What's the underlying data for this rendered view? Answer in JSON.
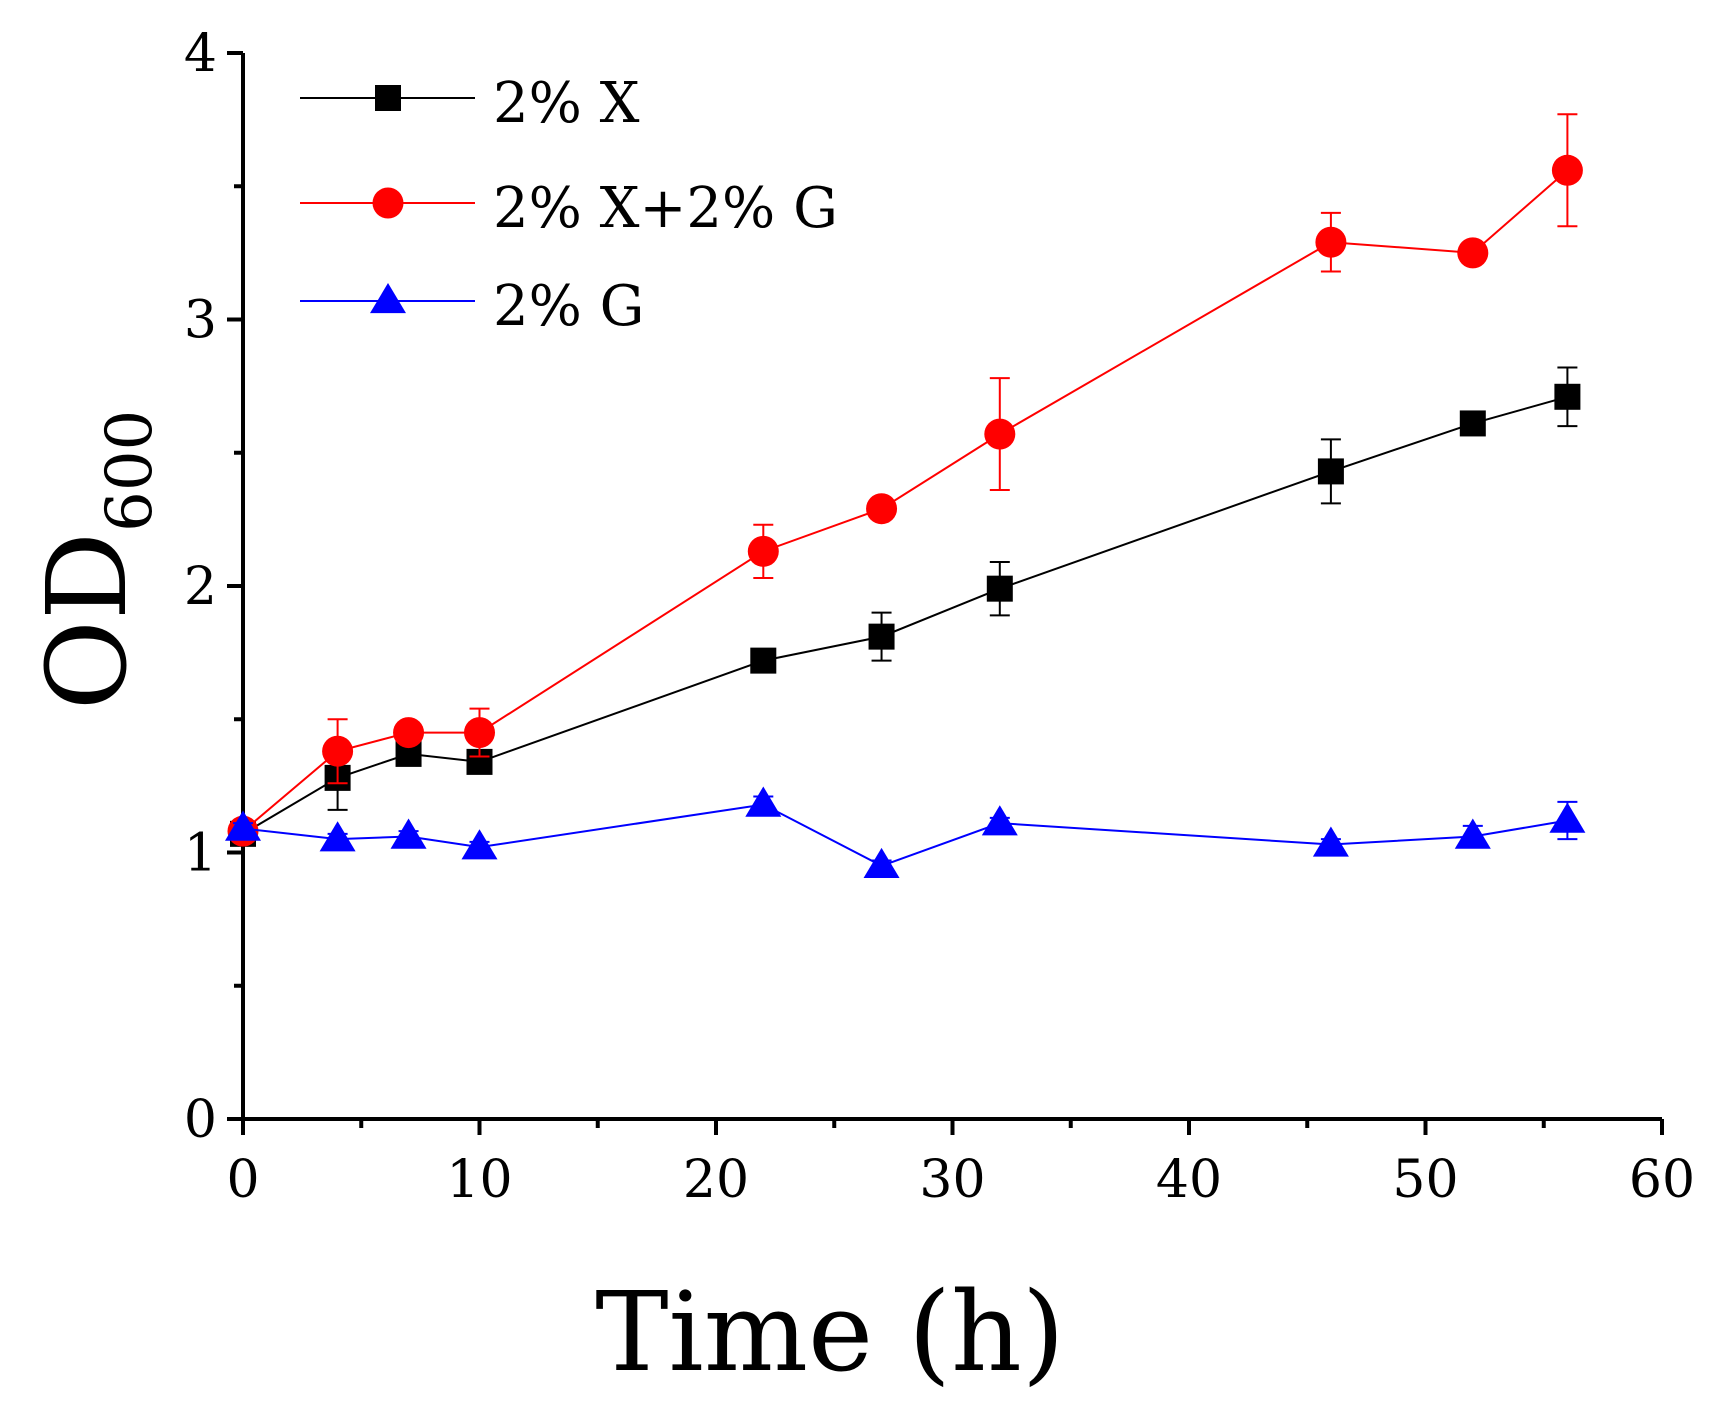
{
  "chart_data": {
    "type": "line",
    "xlabel": "Time (h)",
    "ylabel_main": "OD",
    "ylabel_sub": "600",
    "xlim": [
      0,
      60
    ],
    "ylim": [
      0,
      4
    ],
    "x_ticks": [
      0,
      10,
      20,
      30,
      40,
      50,
      60
    ],
    "x_tick_labels": [
      "0",
      "10",
      "20",
      "30",
      "40",
      "50",
      "60"
    ],
    "y_ticks": [
      0,
      1,
      2,
      3,
      4
    ],
    "y_tick_labels": [
      "0",
      "1",
      "2",
      "3",
      "4"
    ],
    "x_minor_step": 5,
    "y_minor_step": 0.5,
    "legend_position": "top-left",
    "series": [
      {
        "name": "2% X",
        "color": "#000000",
        "marker": "square",
        "x": [
          0,
          4,
          7,
          10,
          22,
          27,
          32,
          46,
          52,
          56
        ],
        "y": [
          1.07,
          1.28,
          1.37,
          1.34,
          1.72,
          1.81,
          1.99,
          2.43,
          2.61,
          2.71
        ],
        "err": [
          0.02,
          0.12,
          0.03,
          0.03,
          0.02,
          0.09,
          0.1,
          0.12,
          0.02,
          0.11
        ]
      },
      {
        "name": "2% X+2% G",
        "color": "#ff0000",
        "marker": "circle",
        "x": [
          0,
          4,
          7,
          10,
          22,
          27,
          32,
          46,
          52,
          56
        ],
        "y": [
          1.08,
          1.38,
          1.45,
          1.45,
          2.13,
          2.29,
          2.57,
          3.29,
          3.25,
          3.56
        ],
        "err": [
          0.02,
          0.12,
          0.03,
          0.09,
          0.1,
          0.02,
          0.21,
          0.11,
          0.02,
          0.21
        ]
      },
      {
        "name": "2% G",
        "color": "#0000ff",
        "marker": "triangle",
        "x": [
          0,
          4,
          7,
          10,
          22,
          27,
          32,
          46,
          52,
          56
        ],
        "y": [
          1.09,
          1.05,
          1.06,
          1.02,
          1.18,
          0.95,
          1.11,
          1.03,
          1.06,
          1.12
        ],
        "err": [
          0.02,
          0.02,
          0.02,
          0.02,
          0.03,
          0.02,
          0.02,
          0.02,
          0.04,
          0.07
        ]
      }
    ]
  }
}
